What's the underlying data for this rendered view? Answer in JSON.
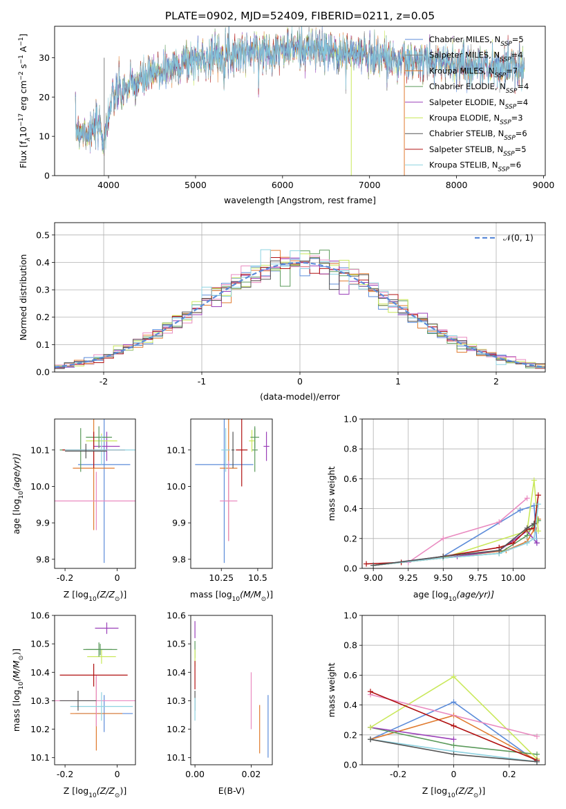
{
  "figure_title": "PLATE=0902, MJD=52409, FIBERID=0211, z=0.05",
  "model_colors": [
    "#5b8bd9",
    "#e07a2e",
    "#5a9a5a",
    "#9a3fb8",
    "#c9e85a",
    "#e98ac0",
    "#7f7f7f",
    "#b01010",
    "#8dd2e0",
    "#555555"
  ],
  "chart_data": [
    {
      "id": "spectrum",
      "type": "line",
      "title": "PLATE=0902, MJD=52409, FIBERID=0211, z=0.05",
      "xlabel": "wavelength [Angstrom, rest frame]",
      "ylabel_main": "Flux [f",
      "ylabel_sub": "λ",
      "ylabel_rest": "10",
      "ylabel_exp1": "−17",
      "ylabel_units": " erg cm",
      "ylabel_exp2": "−2",
      "ylabel_s": " s",
      "ylabel_exp3": "−1",
      "ylabel_a": " A",
      "ylabel_exp4": "−1",
      "ylabel_end": "]",
      "xlim": [
        3380,
        9020
      ],
      "ylim": [
        0,
        38
      ],
      "xticks": [
        4000,
        5000,
        6000,
        7000,
        8000,
        9000
      ],
      "yticks": [
        0,
        10,
        20,
        30
      ],
      "spectrum_envelope": {
        "x": [
          3620,
          3800,
          3900,
          3950,
          4000,
          4050,
          4100,
          4200,
          4300,
          4400,
          4500,
          4600,
          4700,
          4800,
          4900,
          5000,
          5200,
          5400,
          5600,
          5800,
          6000,
          6200,
          6400,
          6600,
          6800,
          7000,
          7200,
          7400,
          7600,
          7800,
          8000,
          8200,
          8400,
          8600,
          8780
        ],
        "y": [
          12,
          11,
          13,
          8,
          16,
          19,
          21,
          22,
          23,
          24.5,
          25.5,
          26.5,
          27.5,
          28.5,
          29,
          29.5,
          30.5,
          31,
          31.5,
          31.5,
          32,
          32.5,
          32,
          31.5,
          31,
          31,
          30,
          29,
          29,
          29,
          28.5,
          28,
          27.5,
          27.5,
          28
        ]
      },
      "legend": [
        {
          "base": "Chabrier MILES, N",
          "sub": "SSP",
          "suffix": "=5"
        },
        {
          "base": "Salpeter MILES, N",
          "sub": "SSP",
          "suffix": "=4"
        },
        {
          "base": "Kroupa MILES, N",
          "sub": "SSP",
          "suffix": "=7"
        },
        {
          "base": "Chabrier ELODIE, N",
          "sub": "SSP",
          "suffix": "=4"
        },
        {
          "base": "Salpeter ELODIE, N",
          "sub": "SSP",
          "suffix": "=4"
        },
        {
          "base": "Kroupa ELODIE, N",
          "sub": "SSP",
          "suffix": "=3"
        },
        {
          "base": "Chabrier STELIB, N",
          "sub": "SSP",
          "suffix": "=6"
        },
        {
          "base": "Salpeter STELIB, N",
          "sub": "SSP",
          "suffix": "=5"
        },
        {
          "base": "Kroupa STELIB, N",
          "sub": "SSP",
          "suffix": "=6"
        }
      ],
      "legend_colors": [
        "#5b8bd9",
        "#7f7f7f",
        "#e07a2e",
        "#5a9a5a",
        "#9a3fb8",
        "#c9e85a",
        "#555555",
        "#b01010",
        "#8dd2e0"
      ],
      "legend_placement": "upper-right"
    },
    {
      "id": "residuals",
      "type": "histogram",
      "xlabel": "(data-model)/error",
      "ylabel": "Normed distribution",
      "xlim": [
        -2.5,
        2.5
      ],
      "ylim": [
        0,
        0.545
      ],
      "xticks": [
        -2,
        -1,
        0,
        1,
        2
      ],
      "yticks": [
        0.0,
        0.1,
        0.2,
        0.3,
        0.4,
        0.5
      ],
      "grid": true,
      "bin_width": 0.1,
      "legend": {
        "math": "𝒩(0, 1)"
      },
      "legend_placement": "upper-right"
    },
    {
      "id": "age-vs-z",
      "type": "errorbar",
      "xlabel_prefix": "Z [log",
      "xlabel_sub": "10",
      "xlabel_suffix": "(Z/Z",
      "xlabel_sun": "⊙",
      "xlabel_end": ")]",
      "ylabel_prefix": "age  [log",
      "ylabel_sub": "10",
      "ylabel_suffix": "(age/yr)]",
      "xlim": [
        -0.24,
        0.07
      ],
      "ylim": [
        9.775,
        10.185
      ],
      "xticks": [
        -0.2,
        0.0
      ],
      "yticks": [
        9.8,
        9.9,
        10.0,
        10.1
      ],
      "points": [
        {
          "x": -0.05,
          "y": 10.06,
          "xerr": 0.1,
          "yerr": 0.27,
          "c": 0
        },
        {
          "x": -0.09,
          "y": 10.05,
          "xerr": 0.08,
          "yerr": 0.17,
          "c": 1
        },
        {
          "x": -0.14,
          "y": 10.1,
          "xerr": 0.08,
          "yerr": 0.06,
          "c": 2
        },
        {
          "x": -0.04,
          "y": 10.11,
          "xerr": 0.05,
          "yerr": 0.04,
          "c": 3
        },
        {
          "x": -0.06,
          "y": 10.125,
          "xerr": 0.06,
          "yerr": 0.02,
          "c": 4
        },
        {
          "x": -0.08,
          "y": 9.96,
          "xerr": 0.24,
          "yerr": 0.08,
          "c": 5
        },
        {
          "x": -0.07,
          "y": 10.135,
          "xerr": 0.05,
          "yerr": 0.03,
          "c": 2
        },
        {
          "x": -0.09,
          "y": 10.1,
          "xerr": 0.12,
          "yerr": 0.05,
          "c": 7
        },
        {
          "x": -0.06,
          "y": 10.1,
          "xerr": 0.14,
          "yerr": 0.04,
          "c": 8
        },
        {
          "x": -0.12,
          "y": 10.097,
          "xerr": 0.08,
          "yerr": 0.02,
          "c": 9
        }
      ]
    },
    {
      "id": "age-vs-mass",
      "type": "errorbar",
      "xlabel_prefix": "mass [log",
      "xlabel_sub": "10",
      "xlabel_suffix": "(M/M",
      "xlabel_sun": "⊙",
      "xlabel_end": ")]",
      "xlim": [
        10.04,
        10.6
      ],
      "ylim": [
        9.775,
        10.185
      ],
      "xticks": [
        10.25,
        10.5
      ],
      "yticks": [
        9.8,
        9.9,
        10.0,
        10.1
      ],
      "points": [
        {
          "x": 10.27,
          "y": 10.06,
          "xerr": 0.2,
          "yerr": 0.27,
          "c": 0
        },
        {
          "x": 10.3,
          "y": 10.05,
          "xerr": 0.06,
          "yerr": 0.2,
          "c": 1
        },
        {
          "x": 10.48,
          "y": 10.1,
          "xerr": 0.02,
          "yerr": 0.06,
          "c": 2
        },
        {
          "x": 10.56,
          "y": 10.11,
          "xerr": 0.02,
          "yerr": 0.04,
          "c": 3
        },
        {
          "x": 10.46,
          "y": 10.125,
          "xerr": 0.02,
          "yerr": 0.03,
          "c": 4
        },
        {
          "x": 10.3,
          "y": 9.96,
          "xerr": 0.06,
          "yerr": 0.11,
          "c": 5
        },
        {
          "x": 10.48,
          "y": 10.135,
          "xerr": 0.03,
          "yerr": 0.03,
          "c": 2
        },
        {
          "x": 10.39,
          "y": 10.1,
          "xerr": 0.04,
          "yerr": 0.1,
          "c": 7
        },
        {
          "x": 10.28,
          "y": 10.1,
          "xerr": 0.03,
          "yerr": 0.06,
          "c": 8
        },
        {
          "x": 10.33,
          "y": 10.1,
          "xerr": 0.01,
          "yerr": 0.05,
          "c": 9
        }
      ]
    },
    {
      "id": "weight-vs-age",
      "type": "line",
      "xlabel_prefix": "age  [log",
      "xlabel_sub": "10",
      "xlabel_suffix": "(age/yr)]",
      "ylabel": "mass weight",
      "xlim": [
        8.92,
        10.23
      ],
      "ylim": [
        0,
        1.0
      ],
      "xticks": [
        9.0,
        9.25,
        9.5,
        9.75,
        10.0
      ],
      "xtick_labels": [
        "9.00",
        "9.25",
        "9.50",
        "9.75",
        "10.00"
      ],
      "yticks": [
        0.0,
        0.2,
        0.4,
        0.6,
        0.8,
        1.0
      ],
      "grid": true,
      "series": [
        {
          "c": 0,
          "x": [
            9.0,
            9.5,
            10.05,
            10.15,
            10.17
          ],
          "y": [
            0.02,
            0.08,
            0.39,
            0.42,
            0.17
          ]
        },
        {
          "c": 1,
          "x": [
            9.0,
            9.5,
            9.95,
            10.1,
            10.15,
            10.18
          ],
          "y": [
            0.02,
            0.07,
            0.12,
            0.18,
            0.26,
            0.33
          ]
        },
        {
          "c": 2,
          "x": [
            9.0,
            9.5,
            9.9,
            10.1,
            10.15,
            10.18
          ],
          "y": [
            0.02,
            0.07,
            0.1,
            0.22,
            0.3,
            0.32
          ]
        },
        {
          "c": 3,
          "x": [
            9.0,
            9.6,
            9.9,
            10.1,
            10.17
          ],
          "y": [
            0.02,
            0.08,
            0.12,
            0.25,
            0.17
          ]
        },
        {
          "c": 4,
          "x": [
            9.0,
            9.5,
            10.1,
            10.15,
            10.18
          ],
          "y": [
            0.02,
            0.07,
            0.25,
            0.59,
            0.25
          ]
        },
        {
          "c": 5,
          "x": [
            9.25,
            9.5,
            9.9,
            10.1
          ],
          "y": [
            0.04,
            0.2,
            0.31,
            0.47
          ]
        },
        {
          "c": 7,
          "x": [
            8.95,
            9.2,
            9.5,
            9.9,
            10.0,
            10.1,
            10.15,
            10.18
          ],
          "y": [
            0.03,
            0.04,
            0.08,
            0.14,
            0.17,
            0.26,
            0.27,
            0.49
          ]
        },
        {
          "c": 8,
          "x": [
            9.0,
            9.5,
            9.9,
            10.1,
            10.15,
            10.18
          ],
          "y": [
            0.02,
            0.07,
            0.1,
            0.17,
            0.2,
            0.43
          ]
        },
        {
          "c": 9,
          "x": [
            9.0,
            9.5,
            9.9,
            10.1,
            10.15
          ],
          "y": [
            0.02,
            0.08,
            0.12,
            0.27,
            0.3
          ]
        }
      ]
    },
    {
      "id": "mass-vs-z",
      "type": "errorbar",
      "xlabel_prefix": "Z [log",
      "xlabel_sub": "10",
      "xlabel_suffix": "(Z/Z",
      "xlabel_sun": "⊙",
      "xlabel_end": ")]",
      "ylabel_prefix": "mass [log",
      "ylabel_sub": "10",
      "ylabel_suffix": "(M/M",
      "ylabel_sun": "⊙",
      "ylabel_end": ")]",
      "xlim": [
        -0.24,
        0.07
      ],
      "ylim": [
        10.075,
        10.6
      ],
      "xticks": [
        -0.2,
        0.0
      ],
      "yticks": [
        10.1,
        10.2,
        10.3,
        10.4,
        10.5,
        10.6
      ],
      "points": [
        {
          "x": -0.05,
          "y": 10.255,
          "xerr": 0.11,
          "yerr": 0.065,
          "c": 0
        },
        {
          "x": -0.08,
          "y": 10.255,
          "xerr": 0.1,
          "yerr": 0.13,
          "c": 1
        },
        {
          "x": -0.065,
          "y": 10.48,
          "xerr": 0.065,
          "yerr": 0.02,
          "c": 2
        },
        {
          "x": -0.04,
          "y": 10.555,
          "xerr": 0.045,
          "yerr": 0.02,
          "c": 3
        },
        {
          "x": -0.06,
          "y": 10.455,
          "xerr": 0.055,
          "yerr": 0.025,
          "c": 4
        },
        {
          "x": -0.08,
          "y": 10.3,
          "xerr": 0.24,
          "yerr": 0.09,
          "c": 5
        },
        {
          "x": -0.07,
          "y": 10.48,
          "xerr": 0.05,
          "yerr": 0.025,
          "c": 2
        },
        {
          "x": -0.09,
          "y": 10.39,
          "xerr": 0.13,
          "yerr": 0.04,
          "c": 7
        },
        {
          "x": -0.06,
          "y": 10.28,
          "xerr": 0.12,
          "yerr": 0.05,
          "c": 8
        },
        {
          "x": -0.15,
          "y": 10.3,
          "xerr": 0.07,
          "yerr": 0.035,
          "c": 9
        }
      ]
    },
    {
      "id": "mass-vs-ebv",
      "type": "errorbar",
      "xlabel": "E(B-V)",
      "xlim": [
        -0.0015,
        0.0275
      ],
      "ylim": [
        10.075,
        10.6
      ],
      "xticks": [
        0.0,
        0.02
      ],
      "xtick_labels": [
        "0.00",
        "0.02"
      ],
      "yticks": [
        10.1,
        10.2,
        10.3,
        10.4,
        10.5,
        10.6
      ],
      "points": [
        {
          "x": 0.026,
          "y": 10.21,
          "xerr": 0.0,
          "yerr": 0.11,
          "c": 0
        },
        {
          "x": 0.023,
          "y": 10.2,
          "xerr": 0.0,
          "yerr": 0.085,
          "c": 1
        },
        {
          "x": 0.0,
          "y": 10.48,
          "xerr": 0.0,
          "yerr": 0.03,
          "c": 2
        },
        {
          "x": 0.0,
          "y": 10.55,
          "xerr": 0.0,
          "yerr": 0.03,
          "c": 3
        },
        {
          "x": 0.0,
          "y": 10.45,
          "xerr": 0.0,
          "yerr": 0.03,
          "c": 4
        },
        {
          "x": 0.02,
          "y": 10.3,
          "xerr": 0.0,
          "yerr": 0.1,
          "c": 5
        },
        {
          "x": 0.0,
          "y": 10.3,
          "xerr": 0.0,
          "yerr": 0.035,
          "c": 9
        },
        {
          "x": 0.0,
          "y": 10.39,
          "xerr": 0.0,
          "yerr": 0.05,
          "c": 7
        },
        {
          "x": 0.0,
          "y": 10.27,
          "xerr": 0.0,
          "yerr": 0.04,
          "c": 8
        }
      ]
    },
    {
      "id": "weight-vs-z",
      "type": "line",
      "xlabel_prefix": "Z [log",
      "xlabel_sub": "10",
      "xlabel_suffix": "(Z/Z",
      "xlabel_sun": "⊙",
      "xlabel_end": ")]",
      "ylabel": "mass weight",
      "xlim": [
        -0.33,
        0.33
      ],
      "ylim": [
        0,
        1.0
      ],
      "xticks": [
        -0.2,
        0.0,
        0.2
      ],
      "yticks": [
        0.0,
        0.2,
        0.4,
        0.6,
        0.8,
        1.0
      ],
      "grid": true,
      "series": [
        {
          "c": 0,
          "x": [
            -0.3,
            0.0,
            0.3
          ],
          "y": [
            0.17,
            0.42,
            0.02
          ]
        },
        {
          "c": 1,
          "x": [
            -0.3,
            0.0,
            0.3
          ],
          "y": [
            0.17,
            0.33,
            0.03
          ]
        },
        {
          "c": 2,
          "x": [
            -0.3,
            0.0,
            0.3
          ],
          "y": [
            0.25,
            0.13,
            0.07
          ]
        },
        {
          "c": 3,
          "x": [
            -0.3,
            0.0
          ],
          "y": [
            0.25,
            0.17
          ]
        },
        {
          "c": 4,
          "x": [
            -0.3,
            0.0,
            0.3
          ],
          "y": [
            0.25,
            0.59,
            0.04
          ]
        },
        {
          "c": 5,
          "x": [
            -0.3,
            0.3
          ],
          "y": [
            0.47,
            0.19
          ]
        },
        {
          "c": 7,
          "x": [
            -0.3,
            0.0,
            0.3
          ],
          "y": [
            0.49,
            0.26,
            0.03
          ]
        },
        {
          "c": 8,
          "x": [
            -0.3,
            0.0,
            0.3
          ],
          "y": [
            0.17,
            0.09,
            0.02
          ]
        },
        {
          "c": 9,
          "x": [
            -0.3,
            0.0,
            0.3
          ],
          "y": [
            0.17,
            0.07,
            0.02
          ]
        }
      ]
    }
  ]
}
